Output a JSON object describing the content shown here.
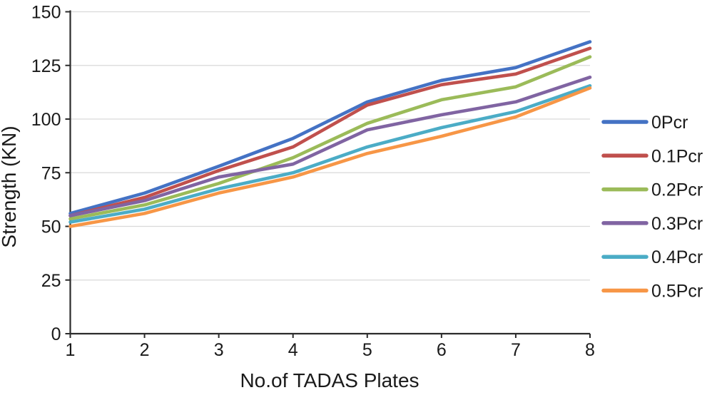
{
  "figure": {
    "background_color": "#ffffff",
    "grid_color": "#d9d9d9",
    "axis_color": "#2b2b2b",
    "text_color": "#1a1a1a"
  },
  "chart_data": {
    "type": "line",
    "title": "",
    "xlabel": "No.of TADAS Plates",
    "ylabel": "Strength (KN)",
    "x": [
      1,
      2,
      3,
      4,
      5,
      6,
      7,
      8
    ],
    "xlim": [
      1,
      8
    ],
    "ylim": [
      0,
      150
    ],
    "xticks": [
      1,
      2,
      3,
      4,
      5,
      6,
      7,
      8
    ],
    "yticks": [
      0,
      25,
      50,
      75,
      100,
      125,
      150
    ],
    "grid": "horizontal",
    "legend_position": "right",
    "series": [
      {
        "name": "0Pcr",
        "color": "#4472C4",
        "values": [
          56,
          65.5,
          78,
          91,
          108,
          118,
          124,
          136
        ]
      },
      {
        "name": "0.1Pcr",
        "color": "#C0504D",
        "values": [
          55,
          63.5,
          76,
          87,
          106.5,
          116,
          121,
          133
        ]
      },
      {
        "name": "0.2Pcr",
        "color": "#9BBB59",
        "values": [
          53.5,
          60,
          70,
          82,
          98,
          109,
          115,
          129
        ]
      },
      {
        "name": "0.3Pcr",
        "color": "#8064A2",
        "values": [
          55,
          62,
          73,
          79,
          95,
          102,
          108,
          119.5
        ]
      },
      {
        "name": "0.4Pcr",
        "color": "#4BACC6",
        "values": [
          52,
          58,
          67.5,
          75,
          87,
          96,
          103.5,
          115.5
        ]
      },
      {
        "name": "0.5Pcr",
        "color": "#F79646",
        "values": [
          50,
          56,
          65.5,
          73,
          84,
          92,
          101,
          114.5
        ]
      }
    ]
  }
}
